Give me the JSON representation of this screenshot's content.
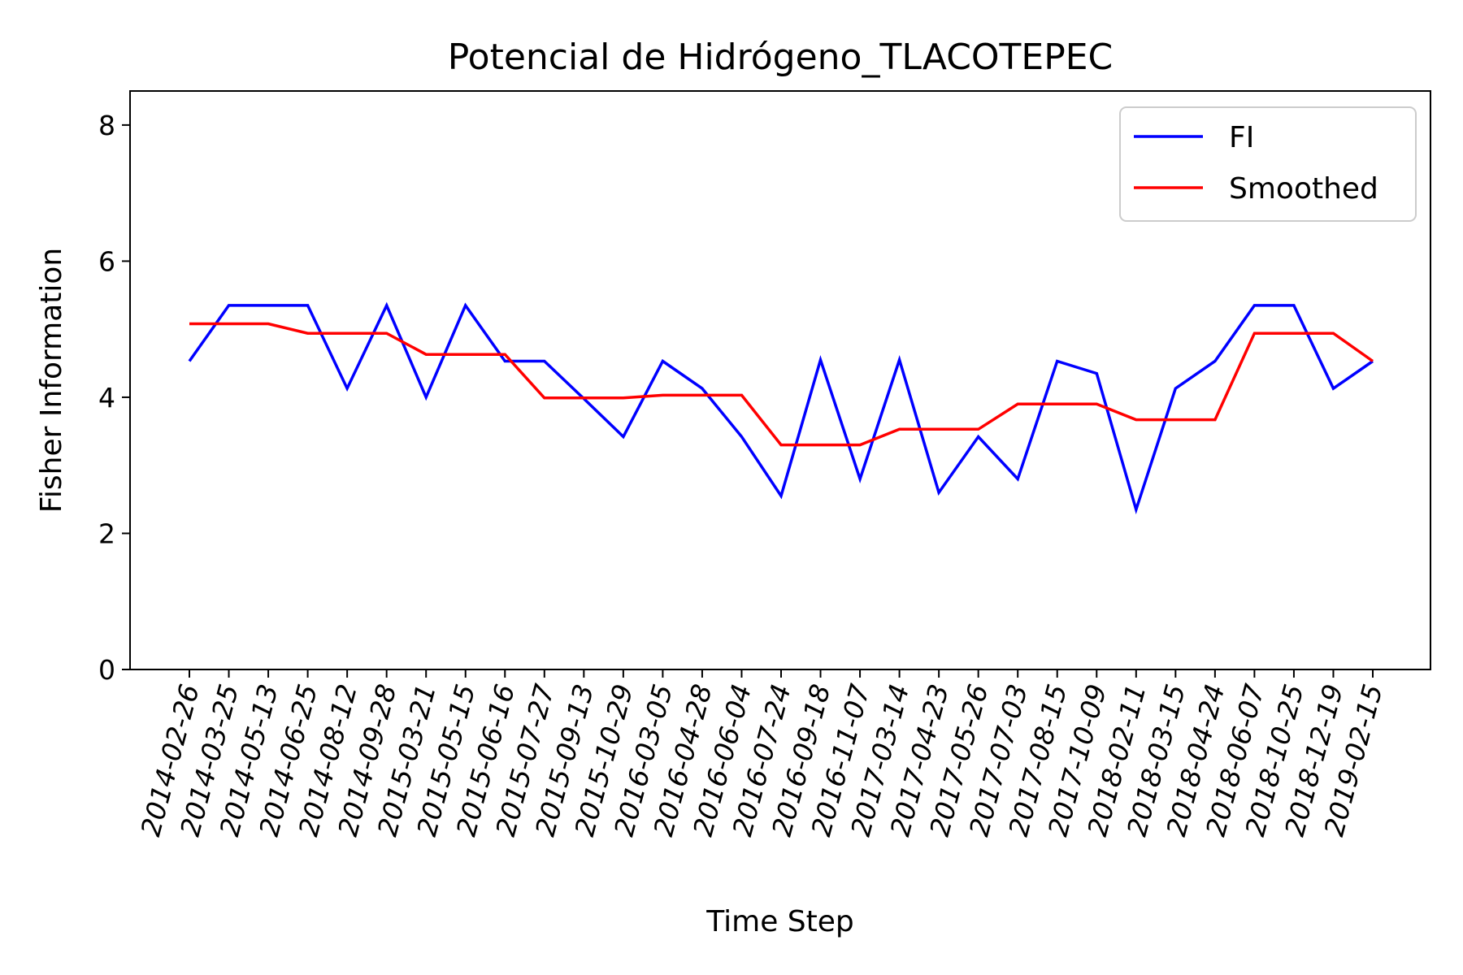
{
  "chart_data": {
    "type": "line",
    "title": "Potencial de Hidrógeno_TLACOTEPEC",
    "xlabel": "Time Step",
    "ylabel": "Fisher Information",
    "ylim": [
      0,
      8.5
    ],
    "yticks": [
      0,
      2,
      4,
      6,
      8
    ],
    "grid": false,
    "legend_position": "top-right",
    "categories": [
      "2014-02-26",
      "2014-03-25",
      "2014-05-13",
      "2014-06-25",
      "2014-08-12",
      "2014-09-28",
      "2015-03-21",
      "2015-05-15",
      "2015-06-16",
      "2015-07-27",
      "2015-09-13",
      "2015-10-29",
      "2016-03-05",
      "2016-04-28",
      "2016-06-04",
      "2016-07-24",
      "2016-09-18",
      "2016-11-07",
      "2017-03-14",
      "2017-04-23",
      "2017-05-26",
      "2017-07-03",
      "2017-08-15",
      "2017-10-09",
      "2018-02-11",
      "2018-03-15",
      "2018-04-24",
      "2018-06-07",
      "2018-10-25",
      "2018-12-19",
      "2019-02-15"
    ],
    "series": [
      {
        "name": "FI",
        "color": "#0000ff",
        "values": [
          4.53,
          5.35,
          5.35,
          5.35,
          4.13,
          5.35,
          4.0,
          5.35,
          4.53,
          4.53,
          3.98,
          3.42,
          4.53,
          4.13,
          3.42,
          2.55,
          4.55,
          2.8,
          4.55,
          2.6,
          3.42,
          2.8,
          4.53,
          4.35,
          2.35,
          4.13,
          4.53,
          5.35,
          5.35,
          4.13,
          4.53
        ]
      },
      {
        "name": "Smoothed",
        "color": "#ff0000",
        "values": [
          5.08,
          5.08,
          5.08,
          4.94,
          4.94,
          4.94,
          4.63,
          4.63,
          4.63,
          3.99,
          3.99,
          3.99,
          4.03,
          4.03,
          4.03,
          3.3,
          3.3,
          3.3,
          3.53,
          3.53,
          3.53,
          3.9,
          3.9,
          3.9,
          3.67,
          3.67,
          3.67,
          4.94,
          4.94,
          4.94,
          4.53
        ]
      }
    ]
  }
}
